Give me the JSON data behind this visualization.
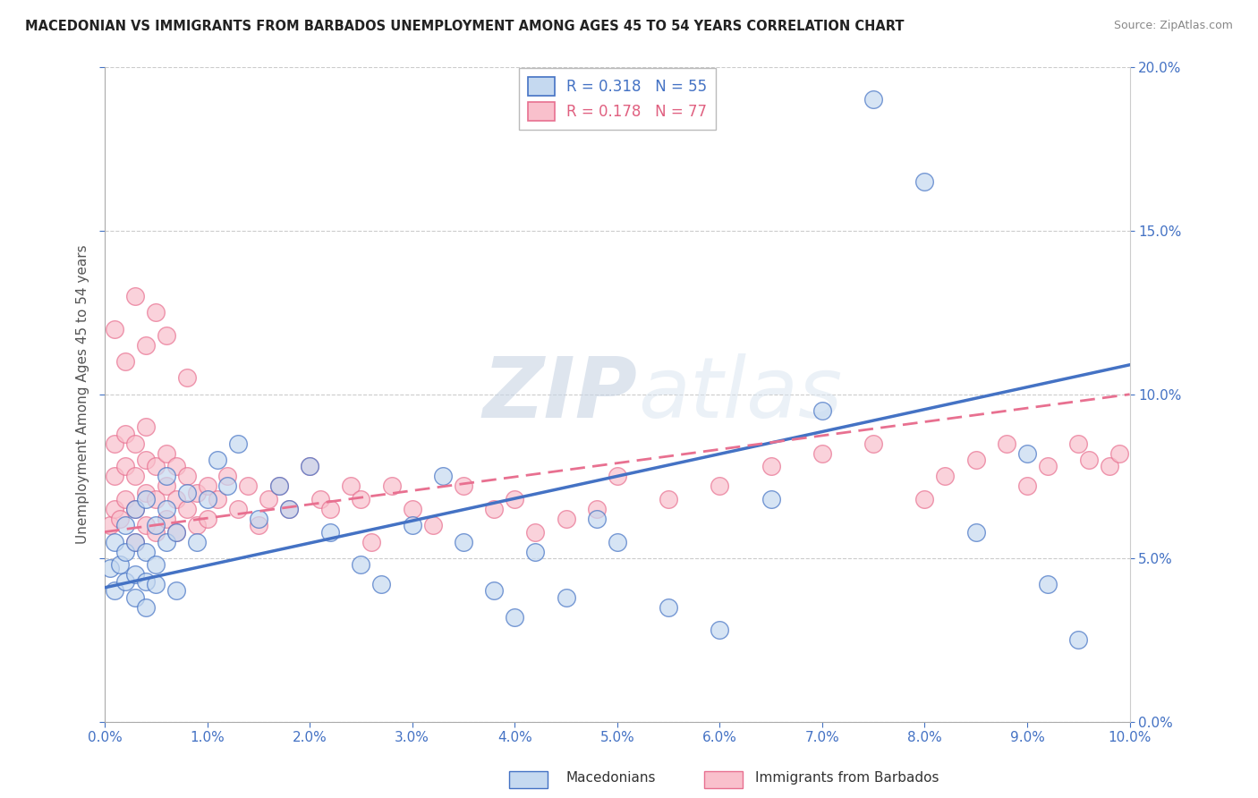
{
  "title": "MACEDONIAN VS IMMIGRANTS FROM BARBADOS UNEMPLOYMENT AMONG AGES 45 TO 54 YEARS CORRELATION CHART",
  "source": "Source: ZipAtlas.com",
  "ylabel": "Unemployment Among Ages 45 to 54 years",
  "legend_macedonians": "Macedonians",
  "legend_immigrants": "Immigrants from Barbados",
  "r_macedonians": 0.318,
  "n_macedonians": 55,
  "r_immigrants": 0.178,
  "n_immigrants": 77,
  "color_macedonians": "#c5d9f0",
  "color_immigrants": "#f9c0cc",
  "color_line_macedonians": "#4472c4",
  "color_line_immigrants": "#e87090",
  "watermark_zip": "ZIP",
  "watermark_atlas": "atlas",
  "xmin": 0.0,
  "xmax": 0.1,
  "ymin": 0.0,
  "ymax": 0.2,
  "yticks": [
    0.0,
    0.05,
    0.1,
    0.15,
    0.2
  ],
  "xticks": [
    0.0,
    0.01,
    0.02,
    0.03,
    0.04,
    0.05,
    0.06,
    0.07,
    0.08,
    0.09,
    0.1
  ],
  "mac_line_x0": 0.0,
  "mac_line_y0": 0.041,
  "mac_line_x1": 0.1,
  "mac_line_y1": 0.109,
  "imm_line_x0": 0.0,
  "imm_line_y0": 0.058,
  "imm_line_x1": 0.1,
  "imm_line_y1": 0.1,
  "macedonian_x": [
    0.0005,
    0.001,
    0.001,
    0.0015,
    0.002,
    0.002,
    0.002,
    0.003,
    0.003,
    0.003,
    0.003,
    0.004,
    0.004,
    0.004,
    0.004,
    0.005,
    0.005,
    0.005,
    0.006,
    0.006,
    0.006,
    0.007,
    0.007,
    0.008,
    0.009,
    0.01,
    0.011,
    0.012,
    0.013,
    0.015,
    0.017,
    0.018,
    0.02,
    0.022,
    0.025,
    0.027,
    0.03,
    0.033,
    0.035,
    0.038,
    0.04,
    0.042,
    0.045,
    0.048,
    0.05,
    0.055,
    0.06,
    0.065,
    0.07,
    0.075,
    0.08,
    0.085,
    0.09,
    0.092,
    0.095
  ],
  "macedonian_y": [
    0.047,
    0.04,
    0.055,
    0.048,
    0.043,
    0.052,
    0.06,
    0.038,
    0.045,
    0.055,
    0.065,
    0.035,
    0.043,
    0.052,
    0.068,
    0.042,
    0.048,
    0.06,
    0.055,
    0.065,
    0.075,
    0.04,
    0.058,
    0.07,
    0.055,
    0.068,
    0.08,
    0.072,
    0.085,
    0.062,
    0.072,
    0.065,
    0.078,
    0.058,
    0.048,
    0.042,
    0.06,
    0.075,
    0.055,
    0.04,
    0.032,
    0.052,
    0.038,
    0.062,
    0.055,
    0.035,
    0.028,
    0.068,
    0.095,
    0.19,
    0.165,
    0.058,
    0.082,
    0.042,
    0.025
  ],
  "immigrant_x": [
    0.0005,
    0.001,
    0.001,
    0.001,
    0.0015,
    0.002,
    0.002,
    0.002,
    0.003,
    0.003,
    0.003,
    0.003,
    0.004,
    0.004,
    0.004,
    0.004,
    0.005,
    0.005,
    0.005,
    0.006,
    0.006,
    0.006,
    0.007,
    0.007,
    0.007,
    0.008,
    0.008,
    0.009,
    0.009,
    0.01,
    0.01,
    0.011,
    0.012,
    0.013,
    0.014,
    0.015,
    0.016,
    0.017,
    0.018,
    0.02,
    0.021,
    0.022,
    0.024,
    0.025,
    0.026,
    0.028,
    0.03,
    0.032,
    0.035,
    0.038,
    0.04,
    0.042,
    0.045,
    0.048,
    0.05,
    0.055,
    0.06,
    0.065,
    0.07,
    0.075,
    0.08,
    0.082,
    0.085,
    0.088,
    0.09,
    0.092,
    0.095,
    0.096,
    0.098,
    0.099,
    0.001,
    0.002,
    0.003,
    0.004,
    0.005,
    0.006,
    0.008
  ],
  "immigrant_y": [
    0.06,
    0.065,
    0.075,
    0.085,
    0.062,
    0.068,
    0.078,
    0.088,
    0.055,
    0.065,
    0.075,
    0.085,
    0.06,
    0.07,
    0.08,
    0.09,
    0.058,
    0.068,
    0.078,
    0.062,
    0.072,
    0.082,
    0.058,
    0.068,
    0.078,
    0.065,
    0.075,
    0.06,
    0.07,
    0.062,
    0.072,
    0.068,
    0.075,
    0.065,
    0.072,
    0.06,
    0.068,
    0.072,
    0.065,
    0.078,
    0.068,
    0.065,
    0.072,
    0.068,
    0.055,
    0.072,
    0.065,
    0.06,
    0.072,
    0.065,
    0.068,
    0.058,
    0.062,
    0.065,
    0.075,
    0.068,
    0.072,
    0.078,
    0.082,
    0.085,
    0.068,
    0.075,
    0.08,
    0.085,
    0.072,
    0.078,
    0.085,
    0.08,
    0.078,
    0.082,
    0.12,
    0.11,
    0.13,
    0.115,
    0.125,
    0.118,
    0.105
  ]
}
